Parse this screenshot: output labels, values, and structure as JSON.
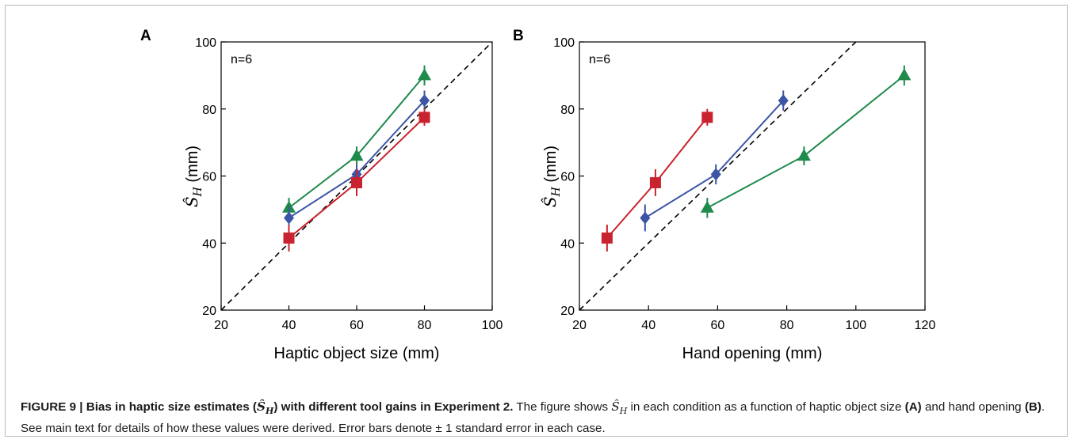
{
  "chart_data": [
    {
      "panel_letter": "A",
      "type": "line",
      "annotation": "n=6",
      "xlabel": "Haptic object size (mm)",
      "ylabel": "S_H (mm)",
      "xlim": [
        20,
        100
      ],
      "ylim": [
        20,
        100
      ],
      "xticks": [
        "20",
        "40",
        "60",
        "80",
        "100"
      ],
      "yticks": [
        "20",
        "40",
        "60",
        "80",
        "100"
      ],
      "grid": false,
      "identity_line": true,
      "series": [
        {
          "marker": "triangle",
          "color": "#1e8a4c",
          "points": [
            {
              "x": 40,
              "y": 50.5,
              "err": 3.0
            },
            {
              "x": 60,
              "y": 66.0,
              "err": 2.8
            },
            {
              "x": 80,
              "y": 90.0,
              "err": 3.0
            }
          ]
        },
        {
          "marker": "diamond",
          "color": "#3c55a5",
          "points": [
            {
              "x": 40,
              "y": 47.5,
              "err": 3.5
            },
            {
              "x": 60,
              "y": 60.5,
              "err": 3.0
            },
            {
              "x": 80,
              "y": 82.5,
              "err": 3.0
            }
          ]
        },
        {
          "marker": "square",
          "color": "#c9232f",
          "points": [
            {
              "x": 40,
              "y": 41.5,
              "err": 4.0
            },
            {
              "x": 60,
              "y": 58.0,
              "err": 4.0
            },
            {
              "x": 80,
              "y": 77.5,
              "err": 2.5
            }
          ]
        }
      ]
    },
    {
      "panel_letter": "B",
      "type": "line",
      "annotation": "n=6",
      "xlabel": "Hand opening (mm)",
      "ylabel": "S_H (mm)",
      "xlim": [
        20,
        120
      ],
      "ylim": [
        20,
        100
      ],
      "xticks": [
        "20",
        "40",
        "60",
        "80",
        "100",
        "120"
      ],
      "yticks": [
        "20",
        "40",
        "60",
        "80",
        "100"
      ],
      "grid": false,
      "identity_line": true,
      "series": [
        {
          "marker": "triangle",
          "color": "#1e8a4c",
          "points": [
            {
              "x": 57,
              "y": 50.5,
              "err": 3.0
            },
            {
              "x": 85,
              "y": 66.0,
              "err": 2.8
            },
            {
              "x": 114,
              "y": 90.0,
              "err": 3.0
            }
          ]
        },
        {
          "marker": "diamond",
          "color": "#3c55a5",
          "points": [
            {
              "x": 39,
              "y": 47.5,
              "err": 4.0
            },
            {
              "x": 59.5,
              "y": 60.5,
              "err": 3.0
            },
            {
              "x": 79,
              "y": 82.5,
              "err": 3.0
            }
          ]
        },
        {
          "marker": "square",
          "color": "#c9232f",
          "points": [
            {
              "x": 28,
              "y": 41.5,
              "err": 4.0
            },
            {
              "x": 42,
              "y": 58.0,
              "err": 4.0
            },
            {
              "x": 57,
              "y": 77.5,
              "err": 2.5
            }
          ]
        }
      ]
    }
  ],
  "caption": {
    "label": "FIGURE 9 | ",
    "title_pre": "Bias in haptic size estimates (",
    "title_post": ") with different tool gains in Experiment 2.",
    "text_1": " The figure shows ",
    "text_2": " in each condition as a function of haptic object size ",
    "ref_a": "(A)",
    "text_3": " and hand opening ",
    "ref_b": "(B)",
    "text_4": ". See main text for details of how these values were derived. Error bars denote ± 1 standard error in each case."
  }
}
